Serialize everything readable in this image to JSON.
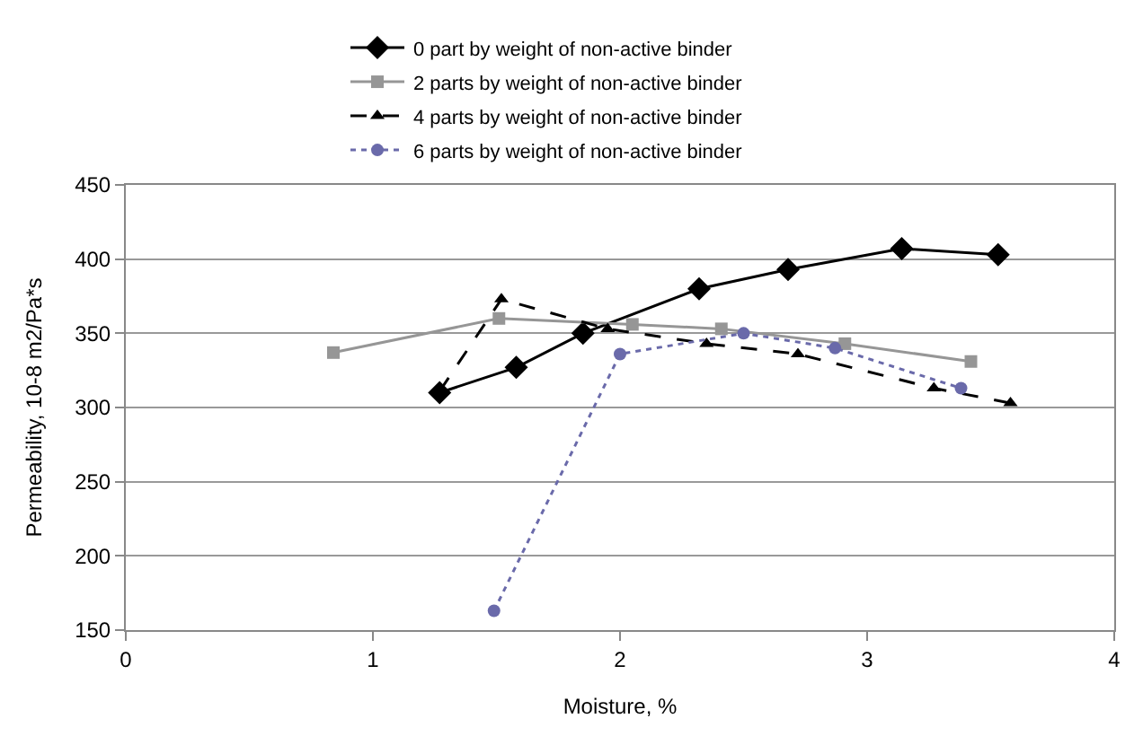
{
  "chart_data": {
    "type": "line",
    "xlabel": "Moisture, %",
    "ylabel": "Permeability, 10-8 m2/Pa*s",
    "xlim": [
      0,
      4
    ],
    "xticks": [
      0,
      1,
      2,
      3,
      4
    ],
    "ylim": [
      150,
      450
    ],
    "yticks": [
      150,
      200,
      250,
      300,
      350,
      400,
      450
    ],
    "grid": "y",
    "legend": "top",
    "series": [
      {
        "name": "0 part by weight of non-active binder",
        "color": "#000000",
        "marker": "diamond",
        "line_style": "solid",
        "x": [
          1.27,
          1.58,
          1.85,
          2.32,
          2.68,
          3.14,
          3.53
        ],
        "values": [
          310,
          327,
          350,
          380,
          393,
          407,
          403
        ]
      },
      {
        "name": "2 parts by weight of non-active binder",
        "color": "#969696",
        "marker": "square",
        "line_style": "solid",
        "x": [
          0.84,
          1.51,
          2.05,
          2.41,
          2.91,
          3.42
        ],
        "values": [
          337,
          360,
          356,
          353,
          343,
          331
        ]
      },
      {
        "name": "4 parts by weight of non-active binder",
        "color": "#000000",
        "marker": "triangle",
        "line_style": "dashed",
        "x": [
          1.27,
          1.52,
          1.95,
          2.35,
          2.72,
          3.27,
          3.58
        ],
        "values": [
          311,
          373,
          353,
          343,
          336,
          313,
          303
        ]
      },
      {
        "name": "6 parts by weight of non-active binder",
        "color": "#6a6aaa",
        "marker": "circle",
        "line_style": "dotted",
        "x": [
          1.49,
          2.0,
          2.5,
          2.87,
          3.38
        ],
        "values": [
          163,
          336,
          350,
          340,
          313
        ]
      }
    ]
  }
}
